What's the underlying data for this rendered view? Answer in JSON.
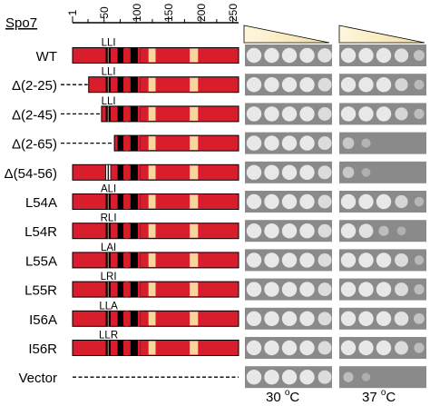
{
  "protein_label": "Spo7",
  "ruler": {
    "ticks": [
      "1",
      "50",
      "100",
      "150",
      "200",
      "250"
    ],
    "max": 259
  },
  "colors": {
    "protein": "#d81d2c",
    "tm": "#000000",
    "pale_box": "#f7d59c",
    "motif_green": "#8fb86a",
    "motif_white": "#ffffff",
    "gradient_light": "#fff6dc",
    "gradient_dark": "#f3dfa6",
    "plate_bg": "#8a8a8a",
    "spot": "#e8e8e8"
  },
  "features": {
    "motif_residues": [
      54,
      56
    ],
    "tm_segments": [
      [
        71,
        80
      ],
      [
        91,
        106
      ]
    ],
    "red_marks": [
      85,
      104
    ],
    "pale_boxes": [
      [
        119,
        130
      ],
      [
        183,
        196
      ]
    ]
  },
  "rows": [
    {
      "label": "WT",
      "start": 1,
      "motif": "LLI",
      "spots_30": [
        1,
        1,
        1,
        1,
        0.9
      ],
      "spots_37": [
        1,
        1,
        1,
        0.85,
        0.4
      ]
    },
    {
      "label": "Δ(2-25)",
      "start": 26,
      "motif": "LLI",
      "spots_30": [
        1,
        1,
        1,
        1,
        0.8
      ],
      "spots_37": [
        1,
        1,
        1,
        0.7,
        0.25
      ]
    },
    {
      "label": "Δ(2-45)",
      "start": 46,
      "motif": "LLI",
      "spots_30": [
        1,
        1,
        1,
        1,
        0.8
      ],
      "spots_37": [
        1,
        1,
        1,
        0.7,
        0.3
      ]
    },
    {
      "label": "Δ(2-65)",
      "start": 66,
      "motif": "",
      "spots_30": [
        1,
        1,
        1,
        1,
        0.8
      ],
      "spots_37": [
        0.5,
        0.15,
        0,
        0,
        0
      ]
    },
    {
      "label": "Δ(54-56)",
      "start": 1,
      "motif": "",
      "deletion": true,
      "spots_30": [
        1,
        1,
        1,
        1,
        0.8
      ],
      "spots_37": [
        0.5,
        0.1,
        0,
        0,
        0
      ]
    },
    {
      "label": "L54A",
      "start": 1,
      "motif": "ALI",
      "spots_30": [
        1,
        1,
        1,
        1,
        0.8
      ],
      "spots_37": [
        1,
        1,
        1,
        0.7,
        0.2
      ]
    },
    {
      "label": "L54R",
      "start": 1,
      "motif": "RLI",
      "spots_30": [
        1,
        1,
        1,
        1,
        0.8
      ],
      "spots_37": [
        1,
        0.9,
        0.3,
        0.1,
        0
      ]
    },
    {
      "label": "L55A",
      "start": 1,
      "motif": "LAI",
      "spots_30": [
        1,
        1,
        1,
        1,
        0.8
      ],
      "spots_37": [
        1,
        1,
        1,
        0.8,
        0.2
      ]
    },
    {
      "label": "L55R",
      "start": 1,
      "motif": "LRI",
      "spots_30": [
        1,
        1,
        1,
        1,
        0.8
      ],
      "spots_37": [
        1,
        1,
        1,
        0.8,
        0.3
      ]
    },
    {
      "label": "I56A",
      "start": 1,
      "motif": "LLA",
      "spots_30": [
        1,
        1,
        1,
        1,
        0.8
      ],
      "spots_37": [
        1,
        1,
        1,
        0.9,
        0.4
      ]
    },
    {
      "label": "I56R",
      "start": 1,
      "motif": "LLR",
      "spots_30": [
        1,
        1,
        1,
        1,
        0.8
      ],
      "spots_37": [
        1,
        1,
        1,
        0.8,
        0.3
      ]
    },
    {
      "label": "Vector",
      "start": 0,
      "motif": "",
      "vector": true,
      "spots_30": [
        1,
        1,
        1,
        1,
        0.8
      ],
      "spots_37": [
        0.3,
        0.05,
        0,
        0,
        0
      ]
    }
  ],
  "conditions": [
    {
      "label_main": "30 ",
      "label_sup": "o",
      "label_unit": "C"
    },
    {
      "label_main": "37 ",
      "label_sup": "o",
      "label_unit": "C"
    }
  ]
}
